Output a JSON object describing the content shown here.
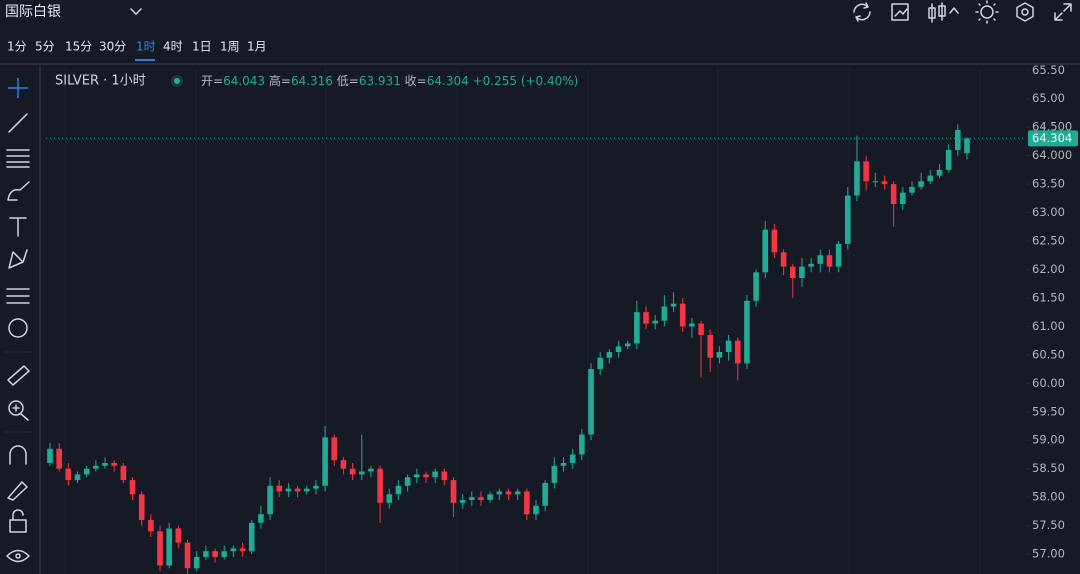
{
  "header": {
    "symbol": "国际白银",
    "intervals": [
      "1分",
      "5分",
      "15分",
      "30分",
      "1时",
      "4时",
      "1日",
      "1周",
      "1月"
    ]
  },
  "chart_data": {
    "type": "candlestick",
    "title": "SILVER · 1小时",
    "ohlc_labels": [
      "开=",
      "高=",
      "低=",
      "收="
    ],
    "change": "+0.255 (+0.40%)",
    "up_color": "#22ab94",
    "down_color": "#f23645",
    "ylim": [
      56.65,
      65.61
    ],
    "yticks": [
      {
        "value": 57,
        "label": "57.00"
      },
      {
        "value": 57.5,
        "label": "57.50"
      },
      {
        "value": 58,
        "label": "58.00"
      },
      {
        "value": 58.5,
        "label": "58.50"
      },
      {
        "value": 59,
        "label": "59.00"
      },
      {
        "value": 59.5,
        "label": "59.50"
      },
      {
        "value": 60,
        "label": "60.00"
      },
      {
        "value": 60.5,
        "label": "60.50"
      },
      {
        "value": 61,
        "label": "61.00"
      },
      {
        "value": 61.5,
        "label": "61.50"
      },
      {
        "value": 62,
        "label": "62.00"
      },
      {
        "value": 62.5,
        "label": "62.50"
      },
      {
        "value": 63,
        "label": "63.00"
      },
      {
        "value": 63.5,
        "label": "63.50"
      },
      {
        "value": 64,
        "label": "64.000"
      },
      {
        "value": 64.5,
        "label": "64.500"
      },
      {
        "value": 65,
        "label": "65.00"
      },
      {
        "value": 65.5,
        "label": "65.50"
      }
    ],
    "open": [
      58.6,
      58.85,
      58.5,
      58.3,
      58.4,
      58.5,
      58.55,
      58.6,
      58.55,
      58.3,
      58.05,
      57.6,
      57.4,
      56.8,
      57.45,
      57.2,
      56.75,
      56.95,
      57.05,
      56.95,
      57.05,
      57.1,
      57.05,
      57.55,
      57.7,
      58.2,
      58.1,
      58.15,
      58.1,
      58.15,
      58.2,
      59.05,
      58.65,
      58.5,
      58.4,
      58.45,
      58.5,
      57.9,
      58.05,
      58.2,
      58.35,
      58.4,
      58.35,
      58.45,
      58.3,
      57.9,
      57.95,
      58.0,
      57.95,
      58.05,
      58.1,
      58.05,
      58.1,
      57.7,
      57.85,
      58.25,
      58.55,
      58.6,
      58.75,
      59.1,
      60.25,
      60.45,
      60.55,
      60.65,
      60.7,
      61.25,
      61.05,
      61.1,
      61.35,
      61.4,
      61.0,
      61.05,
      60.85,
      60.45,
      60.55,
      60.75,
      60.35,
      61.45,
      61.95,
      62.7,
      62.3,
      62.05,
      61.85,
      62.05,
      62.1,
      62.25,
      62.05,
      62.45,
      63.3,
      63.9,
      63.55,
      63.55,
      63.5,
      63.15,
      63.35,
      63.45,
      63.55,
      63.65,
      63.75,
      64.1,
      64.043
    ],
    "high": [
      58.95,
      58.95,
      58.6,
      58.45,
      58.55,
      58.65,
      58.7,
      58.65,
      58.6,
      58.35,
      58.1,
      57.7,
      57.5,
      57.55,
      57.5,
      57.25,
      57.05,
      57.15,
      57.1,
      57.15,
      57.15,
      57.2,
      57.6,
      57.85,
      58.35,
      58.3,
      58.25,
      58.2,
      58.2,
      58.3,
      59.25,
      59.1,
      58.7,
      58.6,
      59.1,
      58.55,
      58.55,
      58.15,
      58.3,
      58.4,
      58.5,
      58.45,
      58.5,
      58.5,
      58.35,
      58.05,
      58.1,
      58.1,
      58.1,
      58.15,
      58.15,
      58.15,
      58.15,
      57.95,
      58.3,
      58.7,
      58.7,
      58.85,
      59.2,
      60.35,
      60.55,
      60.6,
      60.75,
      60.75,
      61.45,
      61.35,
      61.2,
      61.55,
      61.6,
      61.5,
      61.15,
      61.1,
      60.95,
      60.65,
      60.85,
      60.8,
      61.55,
      62.0,
      62.85,
      62.8,
      62.35,
      62.1,
      62.2,
      62.2,
      62.35,
      62.35,
      62.5,
      63.45,
      64.35,
      64.0,
      63.7,
      63.65,
      63.55,
      63.45,
      63.55,
      63.7,
      63.75,
      63.85,
      64.2,
      64.55,
      64.316
    ],
    "low": [
      58.55,
      58.45,
      58.2,
      58.25,
      58.35,
      58.45,
      58.5,
      58.45,
      58.25,
      57.95,
      57.5,
      57.3,
      56.7,
      56.75,
      57.1,
      56.65,
      56.7,
      56.9,
      56.85,
      56.9,
      56.95,
      56.95,
      57.0,
      57.45,
      57.6,
      58.0,
      58.0,
      58.0,
      58.05,
      58.05,
      58.1,
      58.55,
      58.4,
      58.3,
      58.3,
      58.35,
      57.55,
      57.8,
      57.95,
      58.1,
      58.25,
      58.25,
      58.25,
      58.2,
      57.65,
      57.8,
      57.85,
      57.85,
      57.9,
      57.95,
      57.95,
      57.95,
      57.6,
      57.6,
      57.75,
      58.15,
      58.45,
      58.5,
      58.65,
      59.0,
      60.15,
      60.35,
      60.45,
      60.6,
      60.6,
      60.95,
      60.95,
      61.0,
      61.25,
      60.9,
      60.8,
      60.1,
      60.2,
      60.35,
      60.4,
      60.05,
      60.25,
      61.35,
      61.85,
      62.2,
      61.9,
      61.5,
      61.7,
      61.95,
      61.95,
      61.95,
      61.95,
      62.35,
      63.2,
      63.4,
      63.45,
      63.4,
      62.75,
      63.05,
      63.3,
      63.4,
      63.5,
      63.6,
      63.7,
      64.0,
      63.931
    ],
    "close": [
      58.85,
      58.5,
      58.3,
      58.4,
      58.5,
      58.55,
      58.6,
      58.55,
      58.3,
      58.05,
      57.6,
      57.4,
      56.8,
      57.45,
      57.2,
      56.75,
      56.95,
      57.05,
      56.95,
      57.05,
      57.1,
      57.05,
      57.55,
      57.7,
      58.2,
      58.1,
      58.15,
      58.1,
      58.15,
      58.2,
      59.05,
      58.65,
      58.5,
      58.4,
      58.45,
      58.5,
      57.9,
      58.05,
      58.2,
      58.35,
      58.4,
      58.35,
      58.45,
      58.3,
      57.9,
      57.95,
      58.0,
      57.95,
      58.05,
      58.1,
      58.05,
      58.1,
      57.7,
      57.85,
      58.25,
      58.55,
      58.6,
      58.75,
      59.1,
      60.25,
      60.45,
      60.55,
      60.65,
      60.7,
      61.25,
      61.05,
      61.1,
      61.35,
      61.4,
      61.0,
      61.05,
      60.85,
      60.45,
      60.55,
      60.75,
      60.35,
      61.45,
      61.95,
      62.7,
      62.3,
      62.05,
      61.85,
      62.05,
      62.1,
      62.25,
      62.05,
      62.45,
      63.3,
      63.9,
      63.55,
      63.55,
      63.5,
      63.15,
      63.35,
      63.45,
      63.55,
      63.65,
      63.75,
      64.1,
      64.45,
      64.304
    ]
  }
}
